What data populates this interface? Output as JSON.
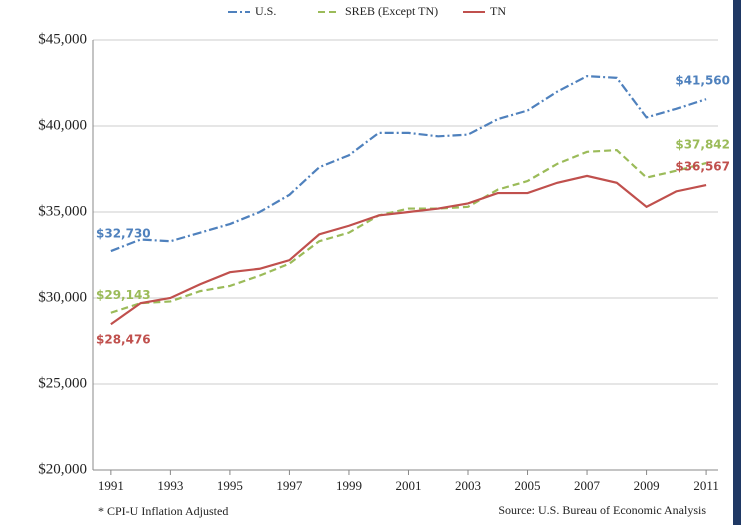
{
  "chart_data": {
    "type": "line",
    "x": [
      1991,
      1992,
      1993,
      1994,
      1995,
      1996,
      1997,
      1998,
      1999,
      2000,
      2001,
      2002,
      2003,
      2004,
      2005,
      2006,
      2007,
      2008,
      2009,
      2010,
      2011
    ],
    "xlim": [
      1990.4,
      2011.4
    ],
    "xticks": [
      1991,
      1993,
      1995,
      1997,
      1999,
      2001,
      2003,
      2005,
      2007,
      2009,
      2011
    ],
    "ylim": [
      20000,
      45000
    ],
    "yticks": [
      {
        "value": 20000,
        "label": "$20,000"
      },
      {
        "value": 25000,
        "label": "$25,000"
      },
      {
        "value": 30000,
        "label": "$30,000"
      },
      {
        "value": 35000,
        "label": "$35,000"
      },
      {
        "value": 40000,
        "label": "$40,000"
      },
      {
        "value": 45000,
        "label": "$45,000"
      }
    ],
    "grid": true,
    "legend": "top",
    "footnote": "* CPI-U Inflation Adjusted",
    "source": "Source: U.S. Bureau of Economic Analysis",
    "series": [
      {
        "name": "U.S.",
        "color": "#4f81bd",
        "dash": "dashdot",
        "values": [
          32730,
          33400,
          33300,
          33800,
          34300,
          35000,
          36000,
          37600,
          38300,
          39600,
          39600,
          39400,
          39500,
          40400,
          40900,
          42000,
          42900,
          42800,
          40500,
          41000,
          41560
        ],
        "value_labels": [
          "$32,730",
          null,
          null,
          null,
          null,
          null,
          null,
          null,
          null,
          null,
          null,
          null,
          null,
          null,
          null,
          null,
          null,
          null,
          null,
          null,
          "$41,560"
        ]
      },
      {
        "name": "SREB (Except TN)",
        "color": "#9bbb59",
        "dash": "dashed",
        "values": [
          29143,
          29700,
          29800,
          30400,
          30700,
          31300,
          32000,
          33300,
          33800,
          34800,
          35200,
          35200,
          35300,
          36300,
          36800,
          37800,
          38500,
          38600,
          37000,
          37400,
          37842
        ],
        "value_labels": [
          "$29,143",
          null,
          null,
          null,
          null,
          null,
          null,
          null,
          null,
          null,
          null,
          null,
          null,
          null,
          null,
          null,
          null,
          null,
          null,
          null,
          "$37,842"
        ]
      },
      {
        "name": "TN",
        "color": "#c0504d",
        "dash": "solid",
        "values": [
          28476,
          29700,
          30000,
          30800,
          31500,
          31700,
          32200,
          33700,
          34200,
          34800,
          35000,
          35200,
          35500,
          36100,
          36100,
          36700,
          37100,
          36700,
          35300,
          36200,
          36567
        ],
        "value_labels": [
          "$28,476",
          null,
          null,
          null,
          null,
          null,
          null,
          null,
          null,
          null,
          null,
          null,
          null,
          null,
          null,
          null,
          null,
          null,
          null,
          null,
          "$36,567"
        ]
      }
    ]
  }
}
